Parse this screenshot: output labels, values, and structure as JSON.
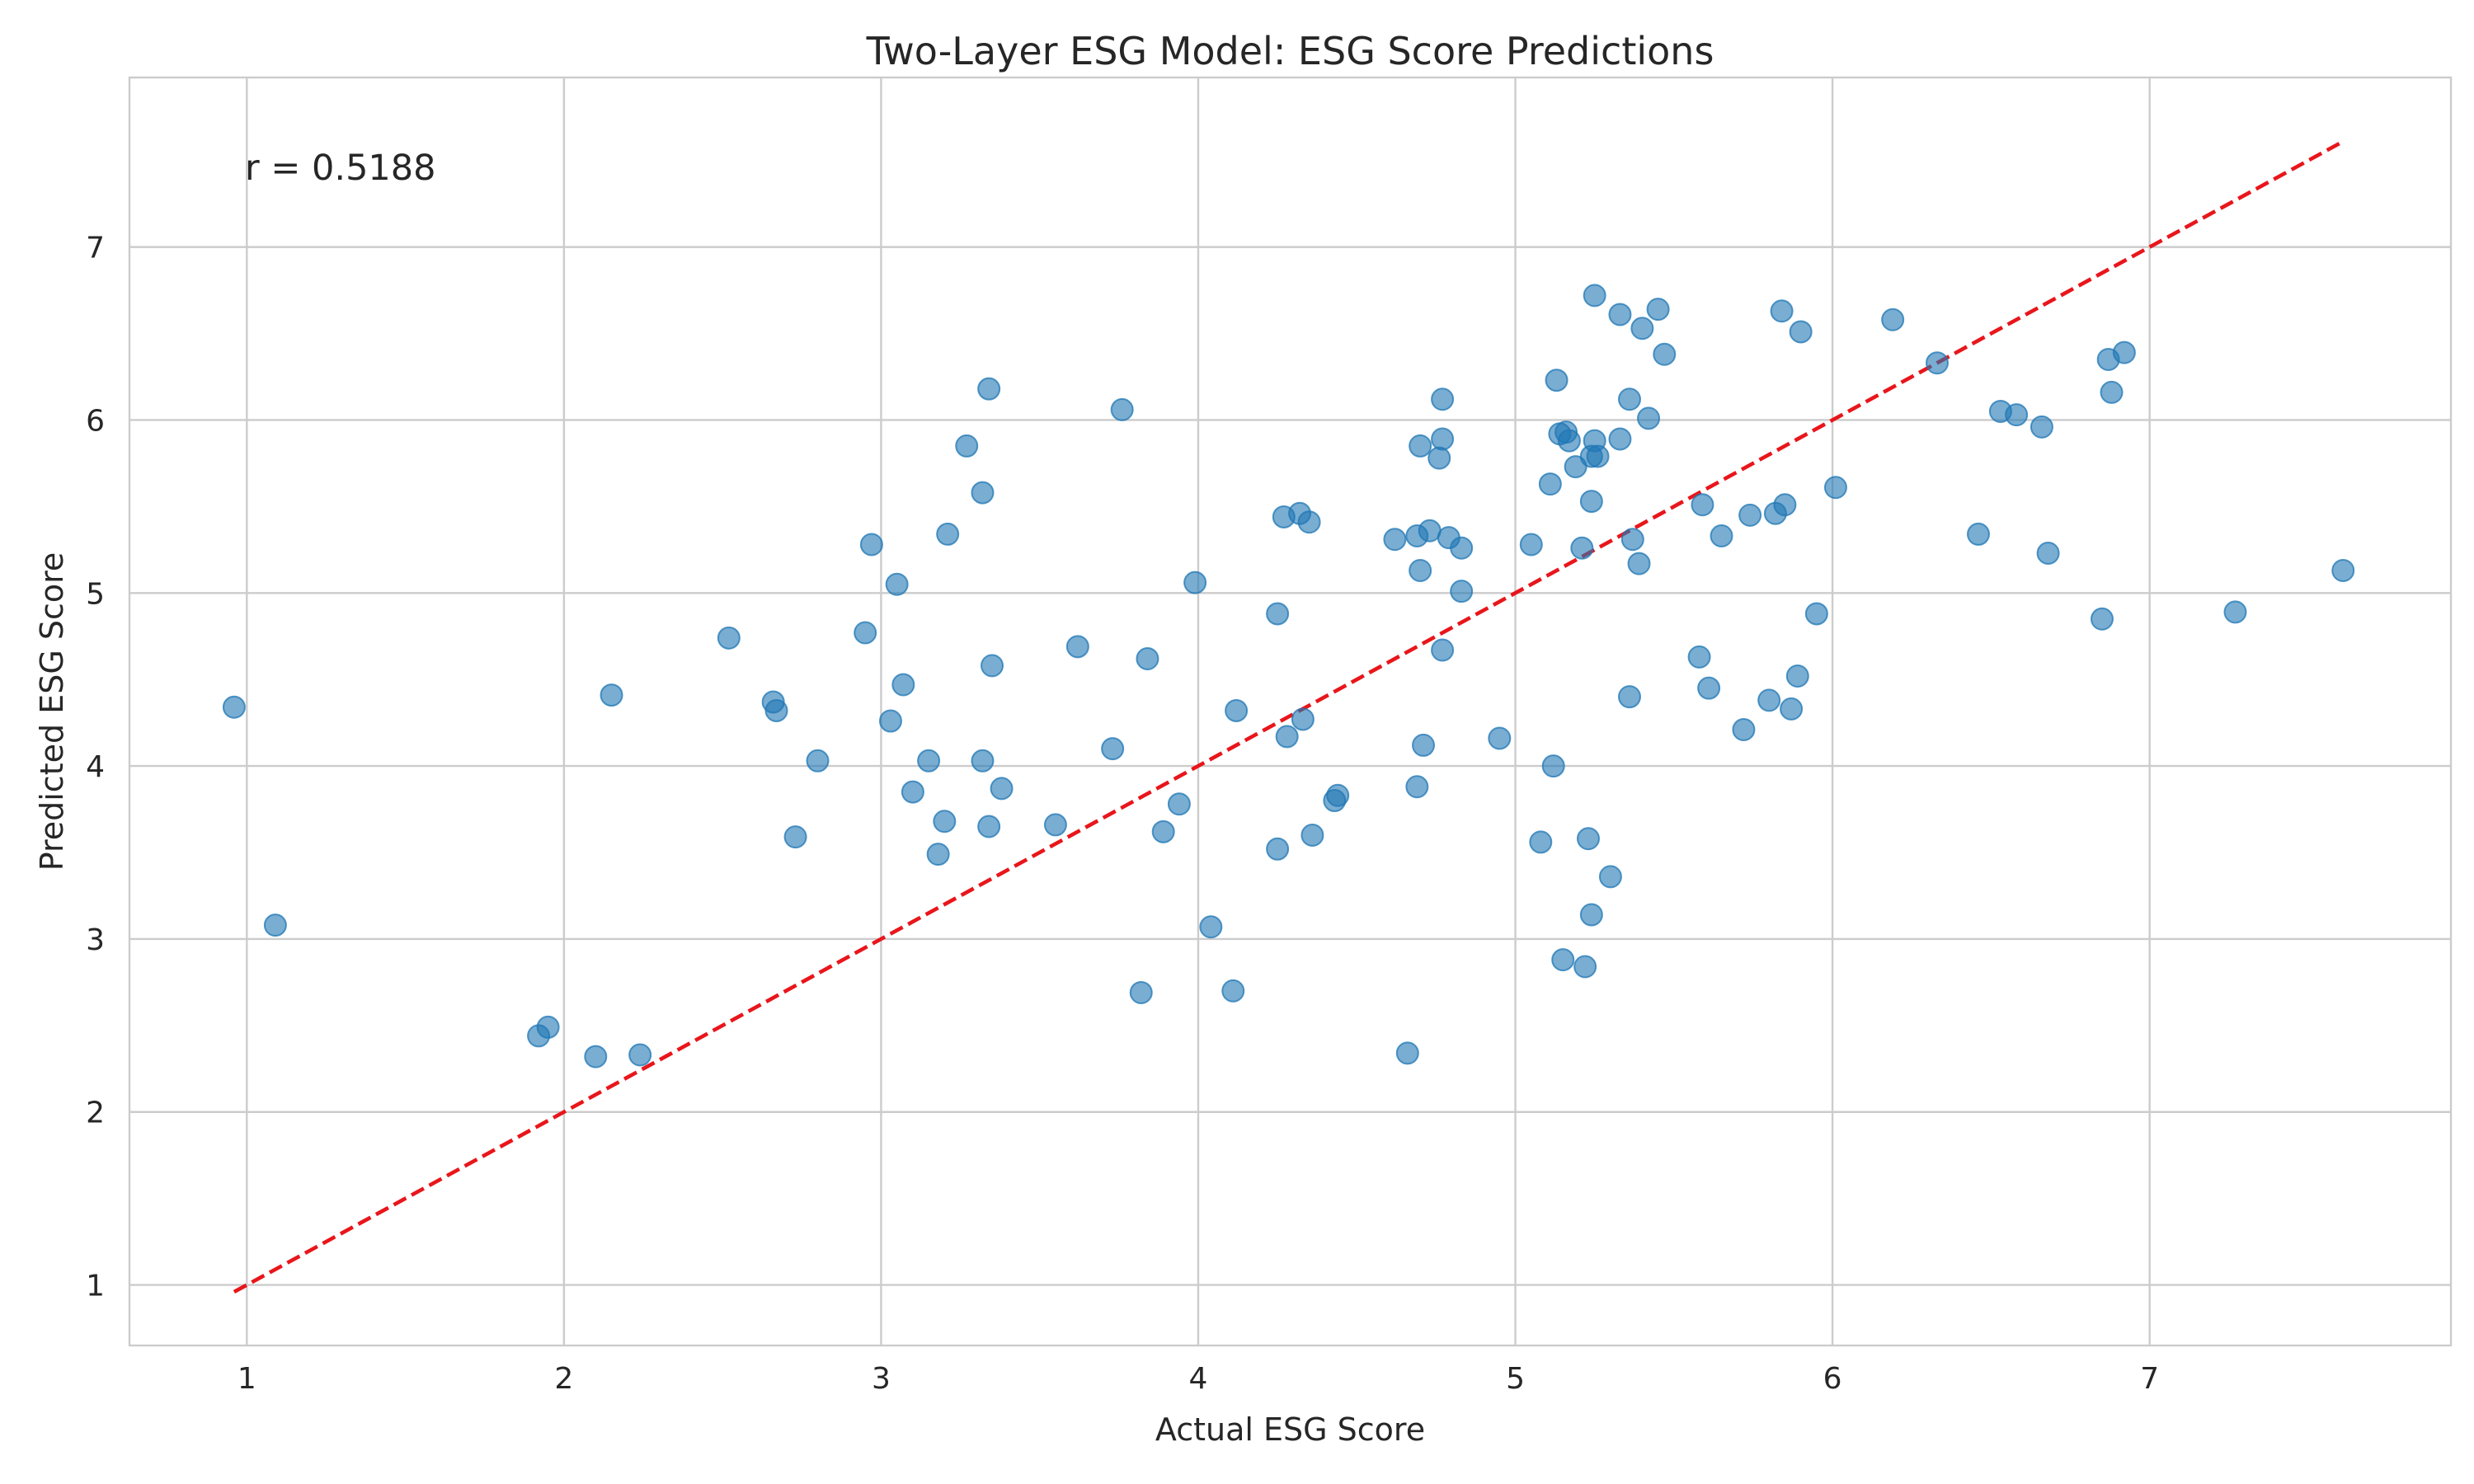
{
  "chart_data": {
    "type": "scatter",
    "title": "Two-Layer ESG Model: ESG Score Predictions",
    "xlabel": "Actual ESG Score",
    "ylabel": "Predicted ESG Score",
    "xlim": [
      0.63,
      7.95
    ],
    "ylim": [
      0.65,
      7.98
    ],
    "xticks": [
      1,
      2,
      3,
      4,
      5,
      6,
      7
    ],
    "yticks": [
      1,
      2,
      3,
      4,
      5,
      6,
      7
    ],
    "grid": true,
    "annotation": "r = 0.5188",
    "point_color": "#1f77b4",
    "line_color": "#e8161b",
    "reference_line": {
      "x": [
        0.96,
        7.61
      ],
      "y": [
        0.96,
        7.61
      ],
      "style": "dashed"
    },
    "points": [
      [
        0.96,
        4.34
      ],
      [
        1.09,
        3.08
      ],
      [
        1.92,
        2.44
      ],
      [
        1.95,
        2.49
      ],
      [
        2.1,
        2.32
      ],
      [
        2.15,
        4.41
      ],
      [
        2.24,
        2.33
      ],
      [
        2.52,
        4.74
      ],
      [
        2.66,
        4.37
      ],
      [
        2.67,
        4.32
      ],
      [
        2.73,
        3.59
      ],
      [
        2.8,
        4.03
      ],
      [
        2.95,
        4.77
      ],
      [
        2.97,
        5.28
      ],
      [
        3.03,
        4.26
      ],
      [
        3.05,
        5.05
      ],
      [
        3.07,
        4.47
      ],
      [
        3.1,
        3.85
      ],
      [
        3.15,
        4.03
      ],
      [
        3.18,
        3.49
      ],
      [
        3.2,
        3.68
      ],
      [
        3.21,
        5.34
      ],
      [
        3.27,
        5.85
      ],
      [
        3.32,
        4.03
      ],
      [
        3.32,
        5.58
      ],
      [
        3.34,
        3.65
      ],
      [
        3.34,
        6.18
      ],
      [
        3.35,
        4.58
      ],
      [
        3.38,
        3.87
      ],
      [
        3.55,
        3.66
      ],
      [
        3.62,
        4.69
      ],
      [
        3.73,
        4.1
      ],
      [
        3.76,
        6.06
      ],
      [
        3.82,
        2.69
      ],
      [
        3.84,
        4.62
      ],
      [
        3.89,
        3.62
      ],
      [
        3.94,
        3.78
      ],
      [
        3.99,
        5.06
      ],
      [
        4.04,
        3.07
      ],
      [
        4.11,
        2.7
      ],
      [
        4.12,
        4.32
      ],
      [
        4.25,
        3.52
      ],
      [
        4.25,
        4.88
      ],
      [
        4.27,
        5.44
      ],
      [
        4.28,
        4.17
      ],
      [
        4.32,
        5.46
      ],
      [
        4.33,
        4.27
      ],
      [
        4.35,
        5.41
      ],
      [
        4.36,
        3.6
      ],
      [
        4.43,
        3.8
      ],
      [
        4.44,
        3.83
      ],
      [
        4.62,
        5.31
      ],
      [
        4.66,
        2.34
      ],
      [
        4.69,
        3.88
      ],
      [
        4.69,
        5.33
      ],
      [
        4.7,
        5.13
      ],
      [
        4.7,
        5.85
      ],
      [
        4.71,
        4.12
      ],
      [
        4.73,
        5.36
      ],
      [
        4.76,
        5.78
      ],
      [
        4.77,
        4.67
      ],
      [
        4.77,
        5.89
      ],
      [
        4.77,
        6.12
      ],
      [
        4.79,
        5.32
      ],
      [
        4.83,
        5.01
      ],
      [
        4.83,
        5.26
      ],
      [
        4.95,
        4.16
      ],
      [
        5.05,
        5.28
      ],
      [
        5.08,
        3.56
      ],
      [
        5.11,
        5.63
      ],
      [
        5.12,
        4.0
      ],
      [
        5.13,
        6.23
      ],
      [
        5.14,
        5.92
      ],
      [
        5.15,
        2.88
      ],
      [
        5.16,
        5.93
      ],
      [
        5.17,
        5.88
      ],
      [
        5.19,
        5.73
      ],
      [
        5.21,
        5.26
      ],
      [
        5.22,
        2.84
      ],
      [
        5.23,
        3.58
      ],
      [
        5.24,
        3.14
      ],
      [
        5.24,
        5.53
      ],
      [
        5.24,
        5.79
      ],
      [
        5.25,
        5.88
      ],
      [
        5.25,
        6.72
      ],
      [
        5.26,
        5.79
      ],
      [
        5.3,
        3.36
      ],
      [
        5.33,
        5.89
      ],
      [
        5.33,
        6.61
      ],
      [
        5.36,
        4.4
      ],
      [
        5.36,
        6.12
      ],
      [
        5.37,
        5.31
      ],
      [
        5.39,
        5.17
      ],
      [
        5.4,
        6.53
      ],
      [
        5.42,
        6.01
      ],
      [
        5.45,
        6.64
      ],
      [
        5.47,
        6.38
      ],
      [
        5.58,
        4.63
      ],
      [
        5.59,
        5.51
      ],
      [
        5.61,
        4.45
      ],
      [
        5.65,
        5.33
      ],
      [
        5.72,
        4.21
      ],
      [
        5.74,
        5.45
      ],
      [
        5.8,
        4.38
      ],
      [
        5.82,
        5.46
      ],
      [
        5.84,
        6.63
      ],
      [
        5.85,
        5.51
      ],
      [
        5.87,
        4.33
      ],
      [
        5.89,
        4.52
      ],
      [
        5.9,
        6.51
      ],
      [
        5.95,
        4.88
      ],
      [
        6.01,
        5.61
      ],
      [
        6.19,
        6.58
      ],
      [
        6.33,
        6.33
      ],
      [
        6.46,
        5.34
      ],
      [
        6.53,
        6.05
      ],
      [
        6.58,
        6.03
      ],
      [
        6.66,
        5.96
      ],
      [
        6.68,
        5.23
      ],
      [
        6.85,
        4.85
      ],
      [
        6.87,
        6.35
      ],
      [
        6.88,
        6.16
      ],
      [
        6.92,
        6.39
      ],
      [
        7.27,
        4.89
      ],
      [
        7.61,
        5.13
      ]
    ]
  }
}
